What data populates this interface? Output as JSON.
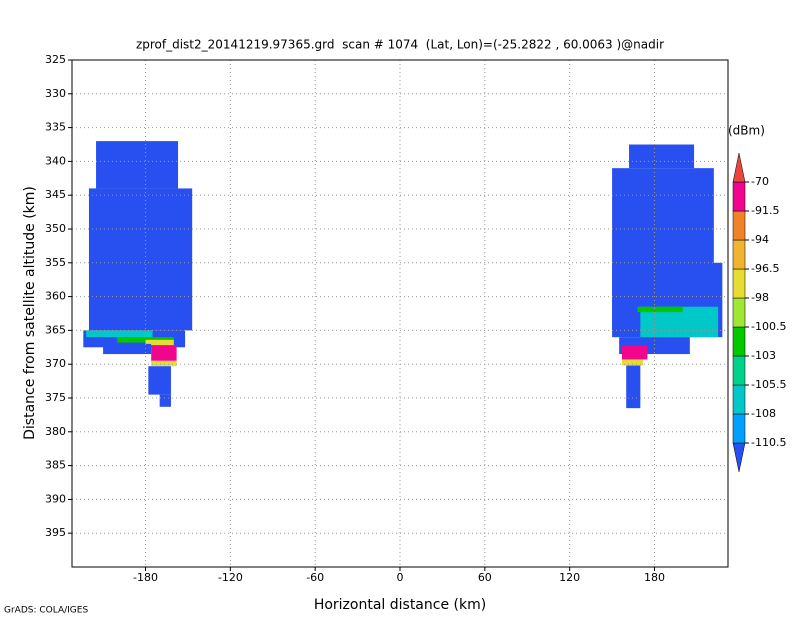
{
  "chart_data": {
    "type": "heatmap",
    "title": "zprof_dist2_20141219.97365.grd  scan # 1074  (Lat, Lon)=(-25.2822 , 60.0063 )@nadir",
    "x_label": "Horizontal distance (km)",
    "y_label": "Distance from satellite altitude (km)",
    "footer": "GrADS: COLA/IGES",
    "xlim": [
      -232,
      232
    ],
    "ylim": [
      325,
      400
    ],
    "y_reversed": true,
    "xticks": [
      -180,
      -120,
      -60,
      0,
      60,
      120,
      180
    ],
    "yticks": [
      325,
      330,
      335,
      340,
      345,
      350,
      355,
      360,
      365,
      370,
      375,
      380,
      385,
      390,
      395
    ],
    "grid": true,
    "colorbar": {
      "unit": "(dBm)",
      "levels": [
        -110.5,
        -108,
        -105.5,
        -103,
        -100.5,
        -98,
        -96.5,
        -94,
        -91.5,
        -70
      ],
      "colors": [
        "#2850f0",
        "#00a0ff",
        "#00c8c8",
        "#00d28c",
        "#00c800",
        "#a0e632",
        "#e6dc32",
        "#f0b432",
        "#f08228",
        "#f0058c",
        "#e6463c"
      ]
    },
    "regions": [
      {
        "x": [
          -215,
          -157
        ],
        "y": [
          337,
          344
        ],
        "value": -112
      },
      {
        "x": [
          -220,
          -147
        ],
        "y": [
          344,
          365
        ],
        "value": -112
      },
      {
        "x": [
          -224,
          -152
        ],
        "y": [
          365,
          367.5
        ],
        "value": -112
      },
      {
        "x": [
          -222,
          -175
        ],
        "y": [
          365,
          366
        ],
        "value": -107
      },
      {
        "x": [
          -200,
          -160
        ],
        "y": [
          366,
          366.8
        ],
        "value": -102
      },
      {
        "x": [
          -180,
          -160
        ],
        "y": [
          366.4,
          367.2
        ],
        "value": -97
      },
      {
        "x": [
          -210,
          -176
        ],
        "y": [
          367,
          368.5
        ],
        "value": -112
      },
      {
        "x": [
          -176,
          -158
        ],
        "y": [
          367.2,
          369.5
        ],
        "value": -80
      },
      {
        "x": [
          -176,
          -158
        ],
        "y": [
          369.5,
          370.3
        ],
        "value": -97
      },
      {
        "x": [
          -178,
          -162
        ],
        "y": [
          370.3,
          374.5
        ],
        "value": -112
      },
      {
        "x": [
          -170,
          -162
        ],
        "y": [
          374.5,
          376.3
        ],
        "value": -112
      },
      {
        "x": [
          162,
          208
        ],
        "y": [
          337.5,
          341
        ],
        "value": -112
      },
      {
        "x": [
          150,
          222
        ],
        "y": [
          341,
          365
        ],
        "value": -112
      },
      {
        "x": [
          150,
          228
        ],
        "y": [
          355,
          366
        ],
        "value": -112
      },
      {
        "x": [
          170,
          225
        ],
        "y": [
          361.5,
          366
        ],
        "value": -107
      },
      {
        "x": [
          168,
          200
        ],
        "y": [
          361.5,
          362.3
        ],
        "value": -102
      },
      {
        "x": [
          155,
          205
        ],
        "y": [
          366,
          368.5
        ],
        "value": -112
      },
      {
        "x": [
          157,
          175
        ],
        "y": [
          367.2,
          369.3
        ],
        "value": -80
      },
      {
        "x": [
          157,
          172
        ],
        "y": [
          369.3,
          370.2
        ],
        "value": -97
      },
      {
        "x": [
          160,
          170
        ],
        "y": [
          370.2,
          376.5
        ],
        "value": -112
      }
    ]
  }
}
